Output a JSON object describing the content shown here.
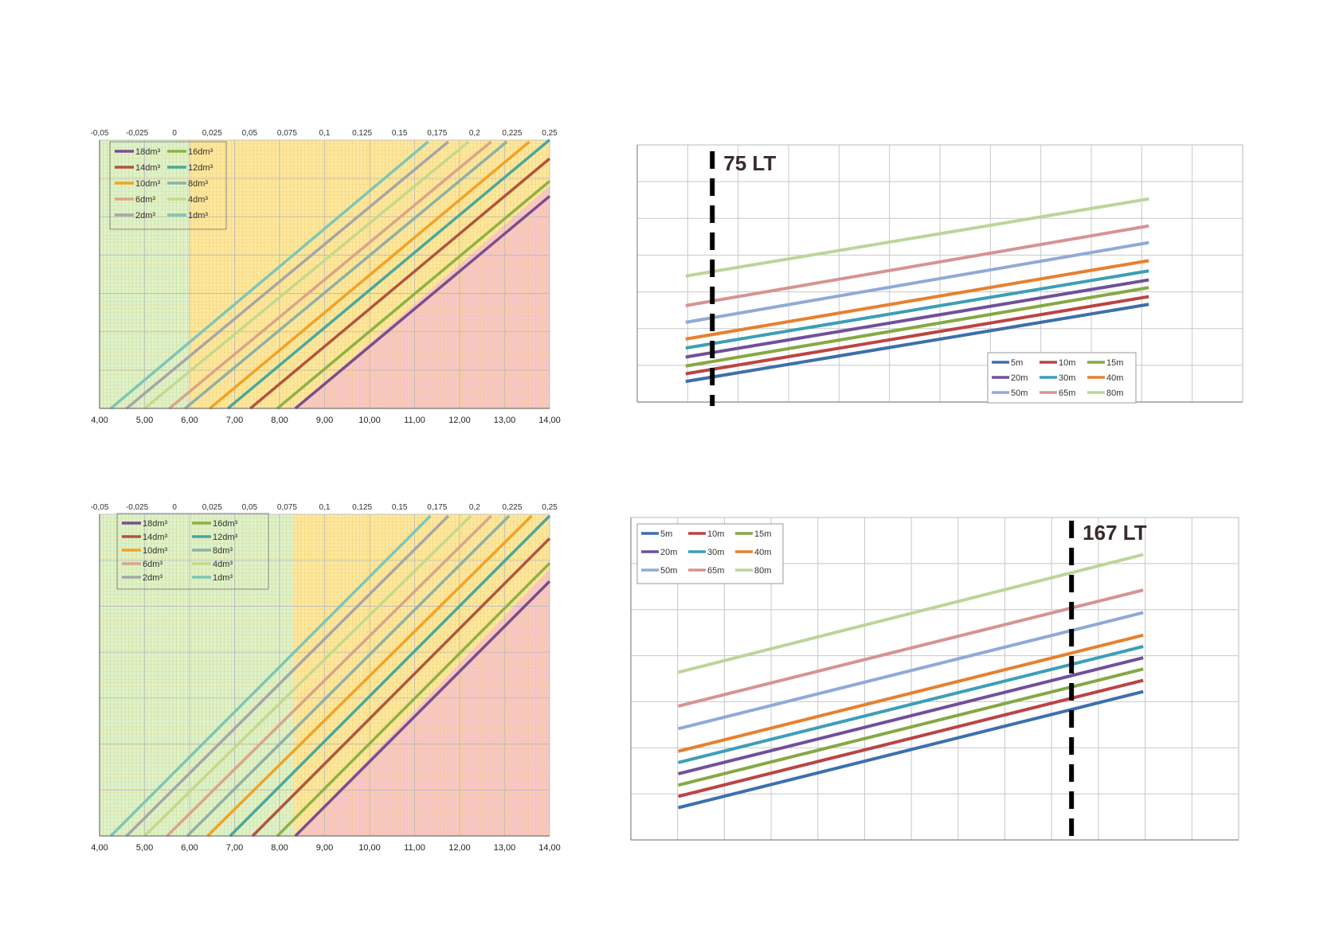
{
  "colors": {
    "zone_green": "#dff2cc",
    "zone_yellow": "#fde8a0",
    "zone_red": "#f8c6cc",
    "grid_green": "#b9df97",
    "grid_yellow": "#f2cf6a",
    "grid_red": "#ee9aa6",
    "grid_plain": "#c8c8c8"
  },
  "chart_data": [
    {
      "id": "top-left",
      "type": "line",
      "x_top_ticks": [
        "-0,05",
        "-0,025",
        "0",
        "0,025",
        "0,05",
        "0,075",
        "0,1",
        "0,125",
        "0,15",
        "0,175",
        "0,2",
        "0,225",
        "0,25"
      ],
      "x_bottom_ticks": [
        "4,00",
        "5,00",
        "6,00",
        "7,00",
        "8,00",
        "9,00",
        "10,00",
        "11,00",
        "12,00",
        "13,00",
        "14,00"
      ],
      "xlim": [
        4,
        14
      ],
      "zones": {
        "green_end": 6.0
      },
      "red_start_x": 8.35,
      "legend": [
        "18dm³",
        "16dm³",
        "14dm³",
        "12dm³",
        "10dm³",
        "8dm³",
        "6dm³",
        "4dm³",
        "2dm³",
        "1dm³"
      ],
      "series": [
        {
          "name": "1dm³",
          "color": "#7fc5b7",
          "x": [
            4.25,
            11.3
          ]
        },
        {
          "name": "2dm³",
          "color": "#a6a6a6",
          "x": [
            4.6,
            11.75
          ]
        },
        {
          "name": "4dm³",
          "color": "#c5d98a",
          "x": [
            5.0,
            12.2
          ]
        },
        {
          "name": "6dm³",
          "color": "#d9a589",
          "x": [
            5.55,
            12.7
          ]
        },
        {
          "name": "8dm³",
          "color": "#8fb0a6",
          "x": [
            5.9,
            13.05
          ]
        },
        {
          "name": "10dm³",
          "color": "#f0a326",
          "x": [
            6.45,
            13.55
          ]
        },
        {
          "name": "12dm³",
          "color": "#4aa89a",
          "x": [
            6.85,
            14.0
          ]
        },
        {
          "name": "14dm³",
          "color": "#b0553c",
          "x": [
            7.35,
            14.0
          ]
        },
        {
          "name": "16dm³",
          "color": "#8db244",
          "x": [
            7.95,
            14.0
          ]
        },
        {
          "name": "18dm³",
          "color": "#7a4e8e",
          "x": [
            8.35,
            14.0
          ]
        }
      ]
    },
    {
      "id": "top-right",
      "type": "line",
      "annotation": "75 LT",
      "legend": [
        "5m",
        "10m",
        "15m",
        "20m",
        "30m",
        "40m",
        "50m",
        "65m",
        "80m"
      ],
      "series": [
        {
          "name": "5m",
          "color": "#3e6fad",
          "y": [
            0.08,
            0.38
          ]
        },
        {
          "name": "10m",
          "color": "#bb4444",
          "y": [
            0.11,
            0.41
          ]
        },
        {
          "name": "15m",
          "color": "#86a843",
          "y": [
            0.14,
            0.445
          ]
        },
        {
          "name": "20m",
          "color": "#70509a",
          "y": [
            0.175,
            0.475
          ]
        },
        {
          "name": "30m",
          "color": "#3c9fb5",
          "y": [
            0.21,
            0.51
          ]
        },
        {
          "name": "40m",
          "color": "#e8802e",
          "y": [
            0.245,
            0.55
          ]
        },
        {
          "name": "50m",
          "color": "#90aad6",
          "y": [
            0.31,
            0.62
          ]
        },
        {
          "name": "65m",
          "color": "#d69393",
          "y": [
            0.375,
            0.685
          ]
        },
        {
          "name": "80m",
          "color": "#bcd59a",
          "y": [
            0.49,
            0.79
          ]
        }
      ]
    },
    {
      "id": "bottom-left",
      "type": "line",
      "x_top_ticks": [
        "-0,05",
        "-0,025",
        "0",
        "0,025",
        "0,05",
        "0,075",
        "0,1",
        "0,125",
        "0,15",
        "0,175",
        "0,2",
        "0,225",
        "0,25"
      ],
      "x_bottom_ticks": [
        "4,00",
        "5,00",
        "6,00",
        "7,00",
        "8,00",
        "9,00",
        "10,00",
        "11,00",
        "12,00",
        "13,00",
        "14,00"
      ],
      "xlim": [
        4,
        14
      ],
      "zones": {
        "green_end": 8.3
      },
      "red_start_x": 8.35,
      "legend": [
        "18dm³",
        "16dm³",
        "14dm³",
        "12dm³",
        "10dm³",
        "8dm³",
        "6dm³",
        "4dm³",
        "2dm³",
        "1dm³"
      ],
      "series": [
        {
          "name": "1dm³",
          "color": "#7fc5b7",
          "x": [
            4.25,
            11.35
          ]
        },
        {
          "name": "2dm³",
          "color": "#a6a6a6",
          "x": [
            4.6,
            11.75
          ]
        },
        {
          "name": "4dm³",
          "color": "#c5d98a",
          "x": [
            5.0,
            12.25
          ]
        },
        {
          "name": "6dm³",
          "color": "#d9a589",
          "x": [
            5.5,
            12.7
          ]
        },
        {
          "name": "8dm³",
          "color": "#8fb0a6",
          "x": [
            5.95,
            13.1
          ]
        },
        {
          "name": "10dm³",
          "color": "#f0a326",
          "x": [
            6.4,
            13.6
          ]
        },
        {
          "name": "12dm³",
          "color": "#4aa89a",
          "x": [
            6.9,
            14.0
          ]
        },
        {
          "name": "14dm³",
          "color": "#b0553c",
          "x": [
            7.4,
            14.0
          ]
        },
        {
          "name": "16dm³",
          "color": "#8db244",
          "x": [
            7.95,
            14.0
          ]
        },
        {
          "name": "18dm³",
          "color": "#7a4e8e",
          "x": [
            8.35,
            14.0
          ]
        }
      ]
    },
    {
      "id": "bottom-right",
      "type": "line",
      "annotation": "167 LT",
      "legend": [
        "5m",
        "10m",
        "15m",
        "20m",
        "30m",
        "40m",
        "50m",
        "65m",
        "80m"
      ],
      "series": [
        {
          "name": "5m",
          "color": "#3e6fad",
          "y": [
            0.1,
            0.46
          ]
        },
        {
          "name": "10m",
          "color": "#bb4444",
          "y": [
            0.135,
            0.495
          ]
        },
        {
          "name": "15m",
          "color": "#86a843",
          "y": [
            0.17,
            0.53
          ]
        },
        {
          "name": "20m",
          "color": "#70509a",
          "y": [
            0.205,
            0.565
          ]
        },
        {
          "name": "30m",
          "color": "#3c9fb5",
          "y": [
            0.24,
            0.6
          ]
        },
        {
          "name": "40m",
          "color": "#e8802e",
          "y": [
            0.275,
            0.635
          ]
        },
        {
          "name": "50m",
          "color": "#90aad6",
          "y": [
            0.345,
            0.705
          ]
        },
        {
          "name": "65m",
          "color": "#d69393",
          "y": [
            0.415,
            0.775
          ]
        },
        {
          "name": "80m",
          "color": "#bcd59a",
          "y": [
            0.52,
            0.885
          ]
        }
      ]
    }
  ]
}
